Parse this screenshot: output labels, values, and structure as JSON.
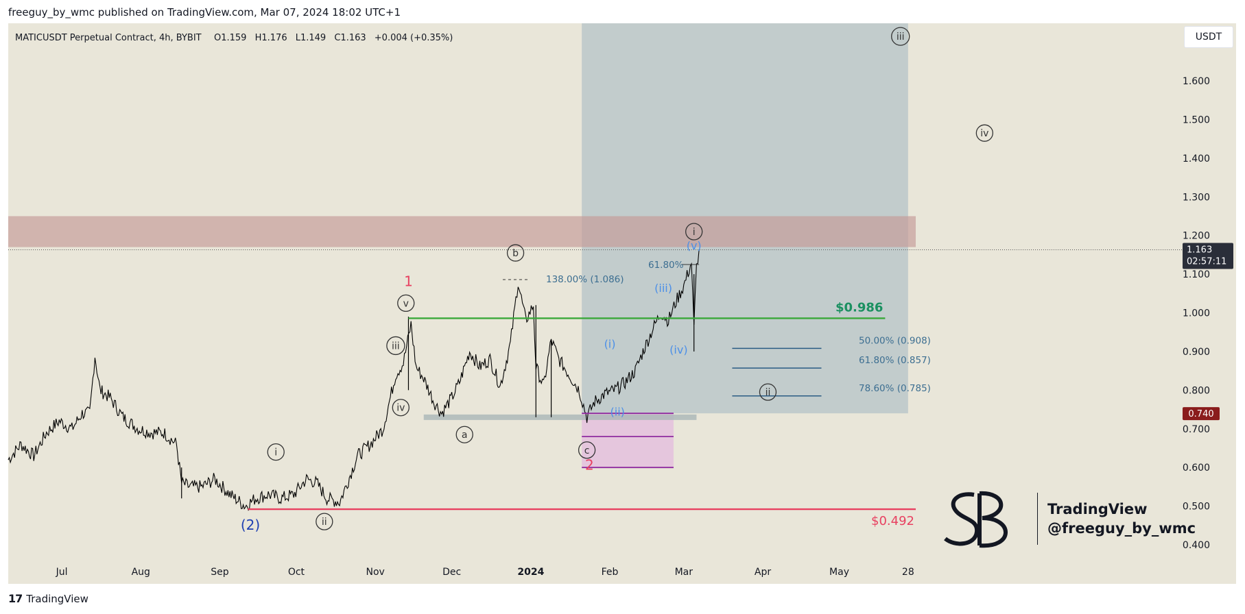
{
  "header": {
    "published_line": "freeguy_by_wmc published on TradingView.com, Mar 07, 2024 18:02 UTC+1"
  },
  "footer": {
    "brand": "TradingView",
    "brand_icon": "tradingview-logo-icon"
  },
  "currency_button": "USDT",
  "watermark": {
    "line1": "TradingView",
    "line2": "@freeguy_by_wmc",
    "logo_icon": "sb-monogram-icon"
  },
  "colors": {
    "plot_bg": "#e9e6d9",
    "candle": "#000000",
    "green_line": "#3aa83a",
    "red_line": "#e84060",
    "resistance_zone": "#c49a97",
    "projection_box": "#aebfc4",
    "pink_zone": "#e3bedd",
    "purple_line": "#8e2a9e",
    "fib_line": "#2a5b84",
    "blue_label": "#4b8fe8",
    "dark_blue_label": "#1e3fb2"
  },
  "chart_data": {
    "type": "candlestick",
    "title": "MATICUSDT Perpetual Contract, 4h, BYBIT",
    "ohlc_text": {
      "o_label": "O",
      "o": "1.159",
      "h_label": "H",
      "h": "1.176",
      "l_label": "L",
      "l": "1.149",
      "c_label": "C",
      "c": "1.163",
      "change": "+0.004 (+0.35%)"
    },
    "y_axis": {
      "currency": "USDT",
      "range": [
        0.36,
        1.72
      ],
      "ticks": [
        "0.400",
        "0.500",
        "0.600",
        "0.700",
        "0.800",
        "0.900",
        "1.000",
        "1.100",
        "1.200",
        "1.300",
        "1.400",
        "1.500",
        "1.600"
      ]
    },
    "x_axis": {
      "range": [
        "2024-06-09",
        "2024-05-31"
      ],
      "domain_start": "2023-06-10",
      "domain_end": "2024-05-31",
      "ticks": [
        {
          "label": "Jul",
          "date": "2023-07-01",
          "bold": false
        },
        {
          "label": "Aug",
          "date": "2023-08-01",
          "bold": false
        },
        {
          "label": "Sep",
          "date": "2023-09-01",
          "bold": false
        },
        {
          "label": "Oct",
          "date": "2023-10-01",
          "bold": false
        },
        {
          "label": "Nov",
          "date": "2023-11-01",
          "bold": false
        },
        {
          "label": "Dec",
          "date": "2023-12-01",
          "bold": false
        },
        {
          "label": "2024",
          "date": "2024-01-01",
          "bold": true
        },
        {
          "label": "Feb",
          "date": "2024-02-01",
          "bold": false
        },
        {
          "label": "Mar",
          "date": "2024-03-01",
          "bold": false
        },
        {
          "label": "Apr",
          "date": "2024-04-01",
          "bold": false
        },
        {
          "label": "May",
          "date": "2024-05-01",
          "bold": false
        },
        {
          "label": "28",
          "date": "2024-05-28",
          "bold": false
        }
      ]
    },
    "price_series": [
      [
        "2023-06-10",
        0.62
      ],
      [
        "2023-06-15",
        0.66
      ],
      [
        "2023-06-20",
        0.63
      ],
      [
        "2023-06-25",
        0.69
      ],
      [
        "2023-06-30",
        0.72
      ],
      [
        "2023-07-05",
        0.7
      ],
      [
        "2023-07-09",
        0.74
      ],
      [
        "2023-07-12",
        0.74
      ],
      [
        "2023-07-14",
        0.89
      ],
      [
        "2023-07-16",
        0.8
      ],
      [
        "2023-07-20",
        0.78
      ],
      [
        "2023-07-25",
        0.73
      ],
      [
        "2023-07-31",
        0.7
      ],
      [
        "2023-08-05",
        0.69
      ],
      [
        "2023-08-10",
        0.69
      ],
      [
        "2023-08-15",
        0.66
      ],
      [
        "2023-08-17",
        0.56
      ],
      [
        "2023-08-20",
        0.55
      ],
      [
        "2023-08-25",
        0.55
      ],
      [
        "2023-08-30",
        0.57
      ],
      [
        "2023-09-05",
        0.53
      ],
      [
        "2023-09-11",
        0.5
      ],
      [
        "2023-09-15",
        0.52
      ],
      [
        "2023-09-20",
        0.53
      ],
      [
        "2023-09-25",
        0.52
      ],
      [
        "2023-09-30",
        0.53
      ],
      [
        "2023-10-05",
        0.57
      ],
      [
        "2023-10-09",
        0.56
      ],
      [
        "2023-10-13",
        0.52
      ],
      [
        "2023-10-18",
        0.51
      ],
      [
        "2023-10-21",
        0.56
      ],
      [
        "2023-10-25",
        0.63
      ],
      [
        "2023-10-30",
        0.66
      ],
      [
        "2023-11-04",
        0.7
      ],
      [
        "2023-11-09",
        0.84
      ],
      [
        "2023-11-12",
        0.87
      ],
      [
        "2023-11-15",
        0.97
      ],
      [
        "2023-11-17",
        0.86
      ],
      [
        "2023-11-20",
        0.83
      ],
      [
        "2023-11-24",
        0.77
      ],
      [
        "2023-11-27",
        0.74
      ],
      [
        "2023-12-01",
        0.78
      ],
      [
        "2023-12-04",
        0.82
      ],
      [
        "2023-12-08",
        0.9
      ],
      [
        "2023-12-12",
        0.86
      ],
      [
        "2023-12-16",
        0.88
      ],
      [
        "2023-12-20",
        0.81
      ],
      [
        "2023-12-24",
        0.92
      ],
      [
        "2023-12-27",
        1.08
      ],
      [
        "2023-12-30",
        0.98
      ],
      [
        "2024-01-02",
        1.02
      ],
      [
        "2024-01-03",
        0.86
      ],
      [
        "2024-01-06",
        0.81
      ],
      [
        "2024-01-09",
        0.93
      ],
      [
        "2024-01-12",
        0.88
      ],
      [
        "2024-01-16",
        0.84
      ],
      [
        "2024-01-20",
        0.8
      ],
      [
        "2024-01-23",
        0.73
      ],
      [
        "2024-01-26",
        0.77
      ],
      [
        "2024-01-30",
        0.79
      ],
      [
        "2024-02-03",
        0.8
      ],
      [
        "2024-02-07",
        0.82
      ],
      [
        "2024-02-11",
        0.85
      ],
      [
        "2024-02-14",
        0.9
      ],
      [
        "2024-02-18",
        0.96
      ],
      [
        "2024-02-21",
        1.0
      ],
      [
        "2024-02-24",
        0.98
      ],
      [
        "2024-02-27",
        1.03
      ],
      [
        "2024-03-01",
        1.07
      ],
      [
        "2024-03-04",
        1.13
      ],
      [
        "2024-03-05",
        0.96
      ],
      [
        "2024-03-06",
        1.12
      ],
      [
        "2024-03-07",
        1.163
      ]
    ],
    "annotations": {
      "price_labels": [
        {
          "text": "$0.986",
          "price": 0.986,
          "color": "green"
        },
        {
          "text": "$0.492",
          "price": 0.492,
          "color": "red"
        }
      ],
      "axis_badges": [
        {
          "text": "1.163",
          "sub": "02:57:11",
          "price": 1.163
        },
        {
          "text": "0.740",
          "price": 0.74
        }
      ],
      "fib_levels": [
        {
          "text": "50.00% (0.908)",
          "price": 0.908
        },
        {
          "text": "61.80% (0.857)",
          "price": 0.857
        },
        {
          "text": "78.60% (0.785)",
          "price": 0.785
        }
      ],
      "extensions": [
        {
          "text": "138.00% (1.086)",
          "price": 1.086
        },
        {
          "text": "61.80%",
          "price": 1.125
        }
      ],
      "wave_labels_circled": [
        {
          "text": "i",
          "date": "2023-09-23",
          "price": 0.64
        },
        {
          "text": "ii",
          "date": "2023-10-12",
          "price": 0.46
        },
        {
          "text": "iii",
          "date": "2023-11-09",
          "price": 0.915
        },
        {
          "text": "iv",
          "date": "2023-11-11",
          "price": 0.755
        },
        {
          "text": "v",
          "date": "2023-11-13",
          "price": 1.025
        },
        {
          "text": "a",
          "date": "2023-12-06",
          "price": 0.685
        },
        {
          "text": "b",
          "date": "2023-12-26",
          "price": 1.155
        },
        {
          "text": "c",
          "date": "2024-01-23",
          "price": 0.645
        },
        {
          "text": "i",
          "date": "2024-03-05",
          "price": 1.21
        },
        {
          "text": "ii",
          "date": "2024-04-03",
          "price": 0.795
        },
        {
          "text": "iii",
          "date": "2024-05-25",
          "price": 1.715
        },
        {
          "text": "iv",
          "date": "2024-06-27",
          "price": 1.465
        }
      ],
      "wave_labels_plain": [
        {
          "text": "1",
          "date": "2023-11-14",
          "price": 1.08,
          "color": "red"
        },
        {
          "text": "2",
          "date": "2024-01-24",
          "price": 0.605,
          "color": "red"
        },
        {
          "text": "(2)",
          "date": "2023-09-13",
          "price": 0.45,
          "color": "darkblue"
        },
        {
          "text": "(i)",
          "date": "2024-02-01",
          "price": 0.92,
          "color": "blue"
        },
        {
          "text": "(ii)",
          "date": "2024-02-04",
          "price": 0.745,
          "color": "blue"
        },
        {
          "text": "(iii)",
          "date": "2024-02-22",
          "price": 1.065,
          "color": "blue"
        },
        {
          "text": "(iv)",
          "date": "2024-02-28",
          "price": 0.905,
          "color": "blue"
        },
        {
          "text": "(v)",
          "date": "2024-03-05",
          "price": 1.175,
          "color": "blue"
        }
      ]
    }
  }
}
